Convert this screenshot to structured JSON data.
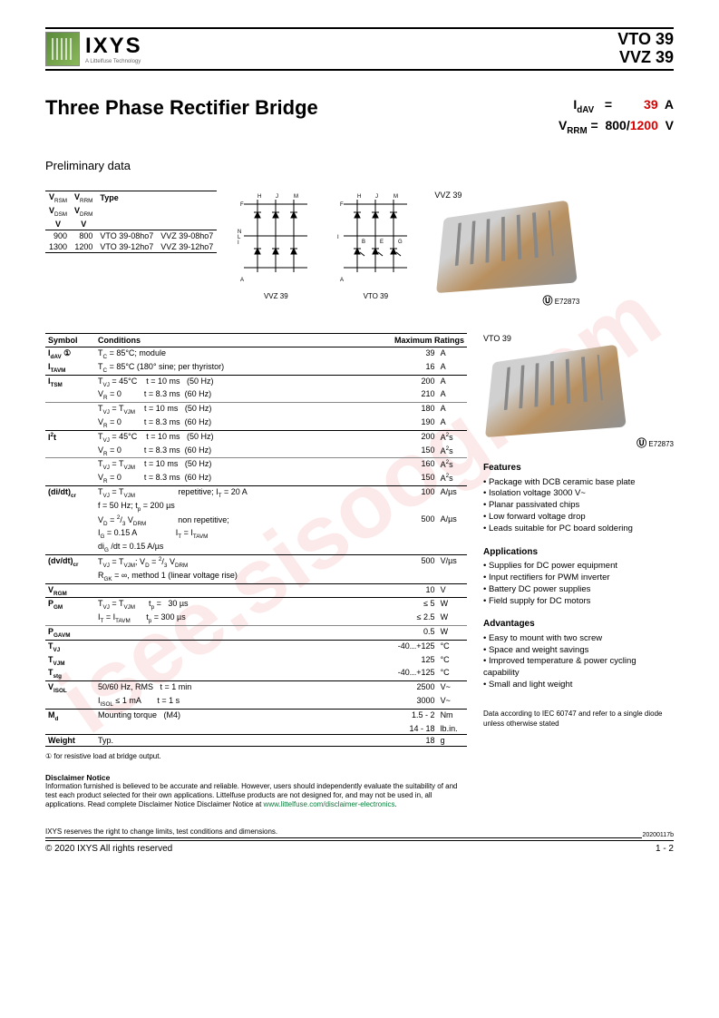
{
  "watermark": "isee.sisoog.com",
  "header": {
    "brand": "IXYS",
    "tagline": "A Littelfuse Technology",
    "part1": "VTO 39",
    "part2": "VVZ 39"
  },
  "title": "Three Phase Rectifier Bridge",
  "ratings": {
    "idav_label": "I",
    "idav_sub": "dAV",
    "idav_eq": "=",
    "idav_val": "39",
    "idav_unit": "A",
    "vrrm_label": "V",
    "vrrm_sub": "RRM",
    "vrrm_eq": "=",
    "vrrm_val1": "800/",
    "vrrm_val2": "1200",
    "vrrm_unit": "V"
  },
  "prelim": "Preliminary data",
  "type_table": {
    "h1": "V",
    "h1s": "RSM",
    "h2": "V",
    "h2s": "RRM",
    "h3": "Type",
    "h4": "V",
    "h4s": "DSM",
    "h5": "V",
    "h5s": "DRM",
    "u1": "V",
    "u2": "V",
    "r1c1": "900",
    "r1c2": "800",
    "r1c3": "VTO 39-08ho7",
    "r1c4": "VVZ 39-08ho7",
    "r2c1": "1300",
    "r2c2": "1200",
    "r2c3": "VTO 39-12ho7",
    "r2c4": "VVZ 39-12ho7"
  },
  "circ1_label": "VVZ 39",
  "circ2_label": "VTO 39",
  "pkg1_label": "VVZ 39",
  "pkg2_label": "VTO 39",
  "ul_text": "E72873",
  "spec": {
    "h_sym": "Symbol",
    "h_cond": "Conditions",
    "h_max": "Maximum Ratings",
    "rows": [
      {
        "sym": "I<sub>dAV</sub> ①",
        "cond": "T<sub>C</sub> = 85°C; module",
        "val": "39",
        "unit": "A",
        "sep": false
      },
      {
        "sym": "I<sub>TAVM</sub>",
        "cond": "T<sub>C</sub> = 85°C (180° sine; per thyristor)",
        "val": "16",
        "unit": "A",
        "sep": true
      },
      {
        "sym": "I<sub>TSM</sub>",
        "cond": "T<sub>VJ</sub> = 45°C&nbsp;&nbsp;&nbsp;&nbsp;t = 10 ms&nbsp;&nbsp;&nbsp;(50 Hz)",
        "val": "200",
        "unit": "A",
        "sep": false
      },
      {
        "sym": "",
        "cond": "V<sub>R</sub> = 0&nbsp;&nbsp;&nbsp;&nbsp;&nbsp;&nbsp;&nbsp;&nbsp;&nbsp;&nbsp;t = 8.3 ms&nbsp;&nbsp;(60 Hz)",
        "val": "210",
        "unit": "A",
        "sep": false,
        "thin": true
      },
      {
        "sym": "",
        "cond": "T<sub>VJ</sub> = T<sub>VJM</sub>&nbsp;&nbsp;&nbsp;&nbsp;t = 10 ms&nbsp;&nbsp;&nbsp;(50 Hz)",
        "val": "180",
        "unit": "A",
        "sep": false
      },
      {
        "sym": "",
        "cond": "V<sub>R</sub> = 0&nbsp;&nbsp;&nbsp;&nbsp;&nbsp;&nbsp;&nbsp;&nbsp;&nbsp;&nbsp;t = 8.3 ms&nbsp;&nbsp;(60 Hz)",
        "val": "190",
        "unit": "A",
        "sep": true
      },
      {
        "sym": "I<sup>2</sup>t",
        "cond": "T<sub>VJ</sub> = 45°C&nbsp;&nbsp;&nbsp;&nbsp;t = 10 ms&nbsp;&nbsp;&nbsp;(50 Hz)",
        "val": "200",
        "unit": "A<sup>2</sup>s",
        "sep": false
      },
      {
        "sym": "",
        "cond": "V<sub>R</sub> = 0&nbsp;&nbsp;&nbsp;&nbsp;&nbsp;&nbsp;&nbsp;&nbsp;&nbsp;&nbsp;t = 8.3 ms&nbsp;&nbsp;(60 Hz)",
        "val": "150",
        "unit": "A<sup>2</sup>s",
        "sep": false,
        "thin": true
      },
      {
        "sym": "",
        "cond": "T<sub>VJ</sub> = T<sub>VJM</sub>&nbsp;&nbsp;&nbsp;&nbsp;t = 10 ms&nbsp;&nbsp;&nbsp;(50 Hz)",
        "val": "160",
        "unit": "A<sup>2</sup>s",
        "sep": false
      },
      {
        "sym": "",
        "cond": "V<sub>R</sub> = 0&nbsp;&nbsp;&nbsp;&nbsp;&nbsp;&nbsp;&nbsp;&nbsp;&nbsp;&nbsp;t = 8.3 ms&nbsp;&nbsp;(60 Hz)",
        "val": "150",
        "unit": "A<sup>2</sup>s",
        "sep": true
      },
      {
        "sym": "(di/dt)<sub>cr</sub>",
        "cond": "T<sub>VJ</sub> = T<sub>VJM</sub>&nbsp;&nbsp;&nbsp;&nbsp;&nbsp;&nbsp;&nbsp;&nbsp;&nbsp;&nbsp;&nbsp;&nbsp;&nbsp;&nbsp;&nbsp;&nbsp;&nbsp;&nbsp;&nbsp;repetitive; I<sub>T</sub> = 20 A",
        "val": "100",
        "unit": "A/µs",
        "sep": false
      },
      {
        "sym": "",
        "cond": "f = 50 Hz; t<sub>p</sub> = 200 µs",
        "val": "",
        "unit": "",
        "sep": false
      },
      {
        "sym": "",
        "cond": "V<sub>D</sub> = <sup>2</sup>/<sub>3</sub> V<sub>DRM</sub>&nbsp;&nbsp;&nbsp;&nbsp;&nbsp;&nbsp;&nbsp;&nbsp;&nbsp;&nbsp;&nbsp;&nbsp;&nbsp;&nbsp;non repetitive;",
        "val": "500",
        "unit": "A/µs",
        "sep": false
      },
      {
        "sym": "",
        "cond": "I<sub>G</sub> = 0.15 A&nbsp;&nbsp;&nbsp;&nbsp;&nbsp;&nbsp;&nbsp;&nbsp;&nbsp;&nbsp;&nbsp;&nbsp;&nbsp;&nbsp;&nbsp;&nbsp;&nbsp;I<sub>T</sub> = I<sub>TAVM</sub>",
        "val": "",
        "unit": "",
        "sep": false
      },
      {
        "sym": "",
        "cond": "di<sub>G</sub> /dt = 0.15 A/µs",
        "val": "",
        "unit": "",
        "sep": true
      },
      {
        "sym": "(dv/dt)<sub>cr</sub>",
        "cond": "T<sub>VJ</sub> = T<sub>VJM</sub>; V<sub>D</sub> = <sup>2</sup>/<sub>3</sub> V<sub>DRM</sub>",
        "val": "500",
        "unit": "V/µs",
        "sep": false
      },
      {
        "sym": "",
        "cond": "R<sub>GK</sub> = ∞, method 1 (linear voltage rise)",
        "val": "",
        "unit": "",
        "sep": true
      },
      {
        "sym": "V<sub>RGM</sub>",
        "cond": "",
        "val": "10",
        "unit": "V",
        "sep": true
      },
      {
        "sym": "P<sub>GM</sub>",
        "cond": "T<sub>VJ</sub> = T<sub>VJM</sub>&nbsp;&nbsp;&nbsp;&nbsp;&nbsp;&nbsp;t<sub>p</sub> =&nbsp;&nbsp;&nbsp;30 µs",
        "val": "≤   5",
        "unit": "W",
        "sep": false
      },
      {
        "sym": "",
        "cond": "I<sub>T</sub> = I<sub>TAVM</sub>&nbsp;&nbsp;&nbsp;&nbsp;&nbsp;&nbsp;&nbsp;t<sub>p</sub> = 300 µs",
        "val": "≤ 2.5",
        "unit": "W",
        "sep": false,
        "thin": true
      },
      {
        "sym": "P<sub>GAVM</sub>",
        "cond": "",
        "val": "0.5",
        "unit": "W",
        "sep": true
      },
      {
        "sym": "T<sub>VJ</sub>",
        "cond": "",
        "val": "-40...+125",
        "unit": "°C",
        "sep": false
      },
      {
        "sym": "T<sub>VJM</sub>",
        "cond": "",
        "val": "125",
        "unit": "°C",
        "sep": false
      },
      {
        "sym": "T<sub>stg</sub>",
        "cond": "",
        "val": "-40...+125",
        "unit": "°C",
        "sep": true
      },
      {
        "sym": "V<sub>ISOL</sub>",
        "cond": "50/60 Hz, RMS&nbsp;&nbsp;&nbsp;t = 1 min",
        "val": "2500",
        "unit": "V~",
        "sep": false
      },
      {
        "sym": "",
        "cond": "I<sub>ISOL</sub> ≤ 1 mA&nbsp;&nbsp;&nbsp;&nbsp;&nbsp;&nbsp;&nbsp;t = 1 s",
        "val": "3000",
        "unit": "V~",
        "sep": true
      },
      {
        "sym": "M<sub>d</sub>",
        "cond": "Mounting torque&nbsp;&nbsp;&nbsp;(M4)",
        "val": "1.5 - 2",
        "unit": "Nm",
        "sep": false
      },
      {
        "sym": "",
        "cond": "",
        "val": "14 - 18",
        "unit": "lb.in.",
        "sep": true
      },
      {
        "sym": "Weight",
        "cond": "Typ.",
        "val": "18",
        "unit": "g",
        "sep": true
      }
    ]
  },
  "features_h": "Features",
  "features": [
    "Package with DCB ceramic base plate",
    "Isolation voltage 3000 V~",
    "Planar passivated chips",
    "Low forward voltage drop",
    "Leads suitable for PC board soldering"
  ],
  "apps_h": "Applications",
  "apps": [
    "Supplies for DC power equipment",
    "Input rectifiers for PWM inverter",
    "Battery DC power supplies",
    "Field supply for DC motors"
  ],
  "adv_h": "Advantages",
  "adv": [
    "Easy to mount with two screw",
    "Space and weight savings",
    "Improved temperature & power cycling capability",
    "Small and light weight"
  ],
  "iec_note": "Data according to IEC 60747 and refer to a single diode unless otherwise stated",
  "footnote": "① for resistive load at bridge output.",
  "disclaimer_h": "Disclaimer Notice",
  "disclaimer_body": "Information furnished is believed to be accurate and reliable. However, users should independently evaluate the suitability of and test each product selected for their own applications. Littelfuse products are not designed for, and may not be used in, all applications. Read complete Disclaimer Notice Disclaimer Notice at ",
  "disclaimer_link": "www.littelfuse.com/disclaimer-electronics",
  "reserve": "IXYS reserves the right to change limits, test conditions and dimensions.",
  "datecode": "20200117b",
  "copyright": "© 2020 IXYS All rights reserved",
  "pageno": "1 - 2"
}
